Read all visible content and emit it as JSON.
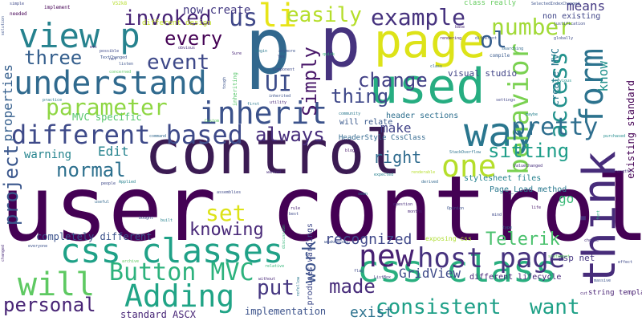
{
  "words": [
    {
      "text": "user control",
      "color": "#440154"
    },
    {
      "text": "control",
      "color": "#3b1b53"
    },
    {
      "text": "p",
      "color": "#31688e"
    },
    {
      "text": "p",
      "color": "#46337e"
    },
    {
      "text": "page",
      "color": "#dde318"
    },
    {
      "text": "used",
      "color": "#26ad81"
    },
    {
      "text": "think",
      "color": "#472c7a"
    },
    {
      "text": "way",
      "color": "#2a768e"
    },
    {
      "text": "css class",
      "color": "#29af7f"
    },
    {
      "text": "css classes",
      "color": "#1fa187"
    },
    {
      "text": "understand",
      "color": "#306a8e"
    },
    {
      "text": "view p",
      "color": "#26828e"
    },
    {
      "text": "inherit",
      "color": "#3b528b"
    },
    {
      "text": "form",
      "color": "#2c738e"
    },
    {
      "text": "behavior",
      "color": "#7ad151"
    },
    {
      "text": "different based",
      "color": "#3e4a89"
    },
    {
      "text": "host page",
      "color": "#46327e"
    },
    {
      "text": "new",
      "color": "#482173"
    },
    {
      "text": "li",
      "color": "#e7e419"
    },
    {
      "text": "will",
      "color": "#5ec962"
    },
    {
      "text": "Adding",
      "color": "#20a486"
    },
    {
      "text": "parameter",
      "color": "#8fd744"
    },
    {
      "text": "one",
      "color": "#b5de2b"
    },
    {
      "text": "Button MVC",
      "color": "#2db27d"
    },
    {
      "text": "example",
      "color": "#46327e"
    },
    {
      "text": "easily",
      "color": "#b5de2b"
    },
    {
      "text": "number",
      "color": "#a2da37"
    },
    {
      "text": "access",
      "color": "#21918c"
    },
    {
      "text": "pretty",
      "color": "#2e6e8e"
    },
    {
      "text": "invoked",
      "color": "#482576"
    },
    {
      "text": "event",
      "color": "#3e4989"
    },
    {
      "text": "three",
      "color": "#355f8d"
    },
    {
      "text": "every",
      "color": "#440154"
    },
    {
      "text": "us",
      "color": "#3f4788"
    },
    {
      "text": "ol",
      "color": "#355e8d"
    },
    {
      "text": "UI",
      "color": "#3d4d8a"
    },
    {
      "text": "Simply",
      "color": "#481769"
    },
    {
      "text": "change",
      "color": "#424086"
    },
    {
      "text": "thing",
      "color": "#3f4889"
    },
    {
      "text": "always",
      "color": "#472d7b"
    },
    {
      "text": "sitting",
      "color": "#1f9e89"
    },
    {
      "text": "right",
      "color": "#2f6b8e"
    },
    {
      "text": "set",
      "color": "#dde318"
    },
    {
      "text": "knowing",
      "color": "#482878"
    },
    {
      "text": "normal",
      "color": "#2d708e"
    },
    {
      "text": "project",
      "color": "#39568c"
    },
    {
      "text": "properties",
      "color": "#355f8d"
    },
    {
      "text": "personal",
      "color": "#482475"
    },
    {
      "text": "consistent",
      "color": "#1fa088"
    },
    {
      "text": "want",
      "color": "#1fa187"
    },
    {
      "text": "Telerik",
      "color": "#4ac16d"
    },
    {
      "text": "made",
      "color": "#472c7a"
    },
    {
      "text": "work",
      "color": "#3b528b"
    },
    {
      "text": "put",
      "color": "#453781"
    },
    {
      "text": "recognized",
      "color": "#3f4889"
    },
    {
      "text": "GridView",
      "color": "#3e4a89"
    },
    {
      "text": "exist",
      "color": "#2c728e"
    },
    {
      "text": "means",
      "color": "#443983"
    },
    {
      "text": "know",
      "color": "#21918c"
    },
    {
      "text": "create MVC",
      "color": "#2a788e"
    },
    {
      "text": "now create",
      "color": "#443a83"
    },
    {
      "text": "Edit",
      "color": "#25838e"
    },
    {
      "text": "warning",
      "color": "#25848e"
    },
    {
      "text": "make",
      "color": "#414287"
    },
    {
      "text": "go",
      "color": "#39b977"
    },
    {
      "text": "completely different",
      "color": "#3b528b"
    },
    {
      "text": "standard ASCX",
      "color": "#482677"
    },
    {
      "text": "implementation",
      "color": "#3b528b"
    },
    {
      "text": "visual studio",
      "color": "#414487"
    },
    {
      "text": "different lifecycle",
      "color": "#482979"
    },
    {
      "text": "header sections",
      "color": "#2e6f8e"
    },
    {
      "text": "MVC specific",
      "color": "#52c569"
    },
    {
      "text": "stylesheet files",
      "color": "#26828e"
    },
    {
      "text": "Page_Load method",
      "color": "#2a788e"
    },
    {
      "text": "asp net",
      "color": "#453581"
    },
    {
      "text": "produces warnings",
      "color": "#3e4989"
    },
    {
      "text": "exposing css",
      "color": "#addc30"
    },
    {
      "text": "will relate",
      "color": "#38588c"
    },
    {
      "text": "existing standard",
      "color": "#440154"
    },
    {
      "text": "non existing",
      "color": "#404688"
    },
    {
      "text": "HeaderStyle CssClass",
      "color": "#31688e"
    },
    {
      "text": "string template",
      "color": "#482173"
    },
    {
      "text": "different design",
      "color": "#c2df23"
    },
    {
      "text": "class really",
      "color": "#65cb5e"
    },
    {
      "text": "implement",
      "color": "#440154"
    },
    {
      "text": "SelectedIndexChanged",
      "color": "#3b528b"
    },
    {
      "text": "rendering",
      "color": "#482576"
    },
    {
      "text": "compile",
      "color": "#38598c"
    },
    {
      "text": "inheriting",
      "color": "#54c568"
    },
    {
      "text": "Component",
      "color": "#3e4a89"
    },
    {
      "text": "StackOverflow",
      "color": "#2c728e"
    },
    {
      "text": "ValueChanged",
      "color": "#472f7d"
    },
    {
      "text": "TextChanged",
      "color": "#3b518b"
    },
    {
      "text": "needed",
      "color": "#440154"
    },
    {
      "text": "globally",
      "color": "#3e4a89"
    },
    {
      "text": "maybe",
      "color": "#26818e"
    },
    {
      "text": "concerned",
      "color": "#5ec962"
    },
    {
      "text": "simple",
      "color": "#3e4989"
    },
    {
      "text": "solution",
      "color": "#3b528b"
    },
    {
      "text": "VS2k8",
      "color": "#b5de2b"
    },
    {
      "text": "purchased",
      "color": "#228c8d"
    },
    {
      "text": "question",
      "color": "#472e7c"
    },
    {
      "text": "settings",
      "color": "#414487"
    },
    {
      "text": "inherited",
      "color": "#3b528b"
    },
    {
      "text": "utility",
      "color": "#482878"
    },
    {
      "text": "community",
      "color": "#2a788e"
    },
    {
      "text": "blogs",
      "color": "#481668"
    },
    {
      "text": "expected",
      "color": "#26818e"
    },
    {
      "text": "derived",
      "color": "#31688e"
    },
    {
      "text": "Opinion",
      "color": "#3b528b"
    },
    {
      "text": "mind",
      "color": "#3e4989"
    },
    {
      "text": "life",
      "color": "#48186a"
    },
    {
      "text": "font",
      "color": "#29af7f"
    },
    {
      "text": "assemblies",
      "color": "#3e4a89"
    },
    {
      "text": "wanted",
      "color": "#472d7b"
    },
    {
      "text": "useful",
      "color": "#31688e"
    },
    {
      "text": "bought",
      "color": "#3e4989"
    },
    {
      "text": "built",
      "color": "#26828e"
    },
    {
      "text": "archive",
      "color": "#5ec962"
    },
    {
      "text": "everyone",
      "color": "#3b528b"
    },
    {
      "text": "without",
      "color": "#482878"
    },
    {
      "text": "relative",
      "color": "#35b779"
    },
    {
      "text": "ListBox",
      "color": "#453781"
    },
    {
      "text": "flag",
      "color": "#3e4989"
    },
    {
      "text": "nofollow",
      "color": "#2a788e"
    },
    {
      "text": "choose",
      "color": "#46337e"
    },
    {
      "text": "massive",
      "color": "#3b528b"
    },
    {
      "text": "cut",
      "color": "#482475"
    },
    {
      "text": "strengths",
      "color": "#46337e"
    },
    {
      "text": "justification",
      "color": "#3e4a89"
    },
    {
      "text": "base",
      "color": "#482878"
    },
    {
      "text": "different",
      "color": "#3b528b"
    },
    {
      "text": "searching",
      "color": "#31688e"
    },
    {
      "text": "previous",
      "color": "#21918c"
    },
    {
      "text": "practice",
      "color": "#2a788e"
    },
    {
      "text": "Custom",
      "color": "#5ec962"
    },
    {
      "text": "command",
      "color": "#31688e"
    },
    {
      "text": "obvious",
      "color": "#482878"
    },
    {
      "text": "possible",
      "color": "#3e4989"
    },
    {
      "text": "statement",
      "color": "#5ec962"
    },
    {
      "text": "weaknesses",
      "color": "#3b528b"
    },
    {
      "text": "rule",
      "color": "#482173"
    },
    {
      "text": "best",
      "color": "#3e4989"
    },
    {
      "text": "seen",
      "color": "#2a788e"
    },
    {
      "text": "type",
      "color": "#31688e"
    },
    {
      "text": "etc",
      "color": "#482576"
    },
    {
      "text": "net",
      "color": "#3e4a89"
    },
    {
      "text": "begin",
      "color": "#2a788e"
    },
    {
      "text": "anymore",
      "color": "#3b528b"
    },
    {
      "text": "discussion",
      "color": "#35b779"
    },
    {
      "text": "Applied",
      "color": "#26828e"
    },
    {
      "text": "people",
      "color": "#3e4989"
    },
    {
      "text": "changed",
      "color": "#482878"
    },
    {
      "text": "listen",
      "color": "#3b528b"
    },
    {
      "text": "Sure",
      "color": "#482576"
    },
    {
      "text": "Yes",
      "color": "#3e4a89"
    },
    {
      "text": "class",
      "color": "#31688e"
    },
    {
      "text": "tough",
      "color": "#3b528b"
    },
    {
      "text": "first",
      "color": "#2a788e"
    },
    {
      "text": "months",
      "color": "#482878"
    },
    {
      "text": "effect",
      "color": "#3e4989"
    },
    {
      "text": "renderable",
      "color": "#b5de2b"
    },
    {
      "text": "quick",
      "color": "#35b779"
    }
  ]
}
